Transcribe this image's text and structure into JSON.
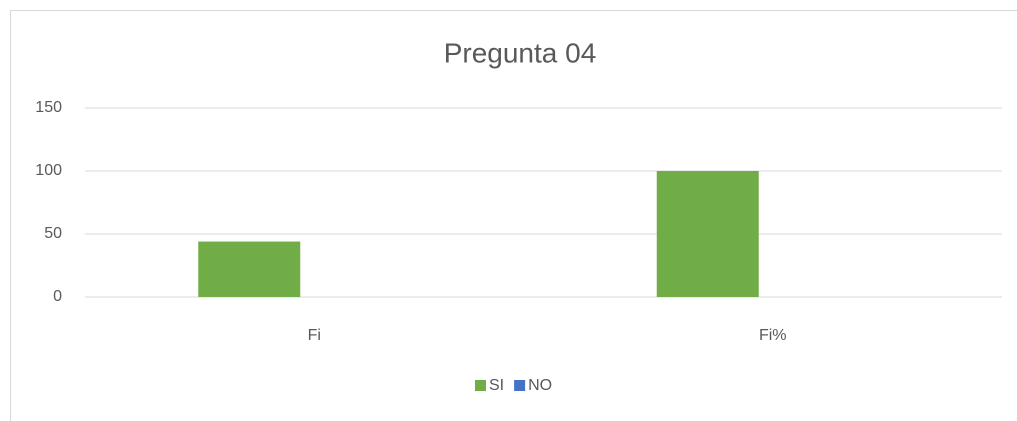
{
  "chart_data": {
    "type": "bar",
    "title": "Pregunta 04",
    "categories": [
      "Fi",
      "Fi%"
    ],
    "series": [
      {
        "name": "SI",
        "color": "#70ad47",
        "values": [
          44,
          100
        ]
      },
      {
        "name": "NO",
        "color": "#4472c4",
        "values": [
          0,
          0
        ]
      }
    ],
    "ylim": [
      0,
      150
    ],
    "yticks": [
      0,
      50,
      100,
      150
    ],
    "grid": true,
    "legend": "bottom"
  }
}
